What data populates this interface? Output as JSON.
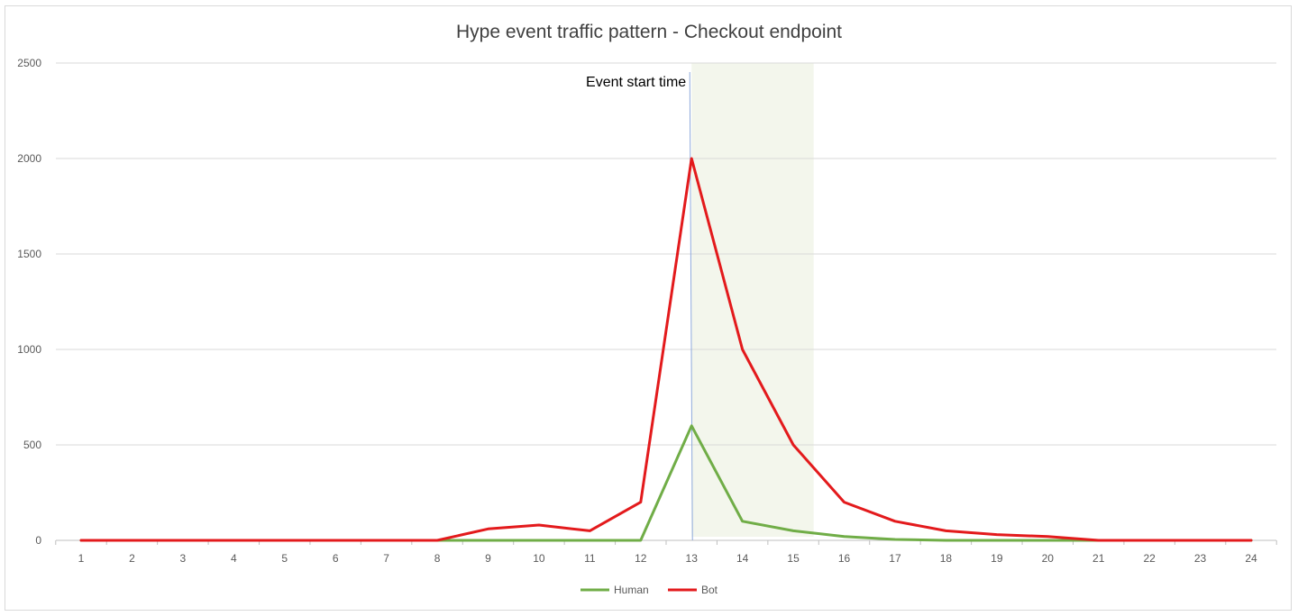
{
  "chart_data": {
    "type": "line",
    "title": "Hype event traffic pattern - Checkout endpoint",
    "xlabel": "",
    "ylabel": "",
    "categories": [
      "1",
      "2",
      "3",
      "4",
      "5",
      "6",
      "7",
      "8",
      "9",
      "10",
      "11",
      "12",
      "13",
      "14",
      "15",
      "16",
      "17",
      "18",
      "19",
      "20",
      "21",
      "22",
      "23",
      "24"
    ],
    "y_ticks": [
      "0",
      "500",
      "1000",
      "1500",
      "2000",
      "2500"
    ],
    "ylim": [
      0,
      2500
    ],
    "grid": true,
    "legend_position": "bottom",
    "series": [
      {
        "name": "Human",
        "color": "#70ad47",
        "values": [
          0,
          0,
          0,
          0,
          0,
          0,
          0,
          0,
          0,
          0,
          0,
          0,
          600,
          100,
          50,
          20,
          5,
          0,
          0,
          0,
          0,
          0,
          0,
          0
        ]
      },
      {
        "name": "Bot",
        "color": "#e31a1c",
        "values": [
          0,
          0,
          0,
          0,
          0,
          0,
          0,
          0,
          60,
          80,
          50,
          200,
          2000,
          1000,
          500,
          200,
          100,
          50,
          30,
          20,
          0,
          0,
          0,
          0
        ]
      }
    ],
    "annotation": {
      "label": "Event start time",
      "x_category": "13"
    },
    "highlight_region": {
      "from_category": "13",
      "to_category": "15.4",
      "color": "#f3f6ec"
    }
  }
}
